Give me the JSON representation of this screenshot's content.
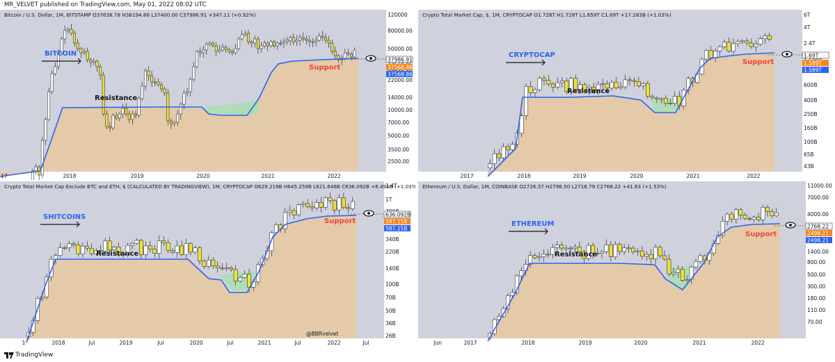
{
  "publish_line": "MR_VELVET published on TradingView.com, May 01, 2022 08:02 UTC",
  "footer_brand": "TradingView",
  "colors": {
    "accent_blue": "#2a62f4",
    "support_red": "#f0433a",
    "candle_up": "#ffffff",
    "candle_down": "#f0df36",
    "fill_tan": "#e6c9a2",
    "fill_green": "#a7dfae",
    "panel_bg": "#cfd2dc",
    "price_tag_orange": "#f5861f"
  },
  "chart_data": [
    {
      "id": "btc",
      "type": "candlestick",
      "title": "Bitcoin / U.S. Dollar, 1M, BITSTAMP  O37638.78  H38194.86  L37400.00  C37986.91  +347.11 (+0.92%)",
      "label": "BITCOIN",
      "resistance_label": "Resistance",
      "support_label": "Support",
      "y_unit": "USD",
      "log_scale": true,
      "y_ticks": [
        "120000",
        "80000.00",
        "50000.00",
        "37986.91",
        "37568.86",
        "37568.86",
        "22000.00",
        "14000.00",
        "10000.00",
        "7000.00",
        "5000.00",
        "3500.00",
        "2500.00"
      ],
      "price_tags": [
        {
          "text": "37986.91",
          "kind": "last"
        },
        {
          "text": "37568.86",
          "kind": "orange"
        },
        {
          "text": "37568.86",
          "kind": "blue"
        }
      ],
      "x_labels": [
        "17",
        "2018",
        "2019",
        "2020",
        "2021",
        "2022"
      ]
    },
    {
      "id": "total",
      "type": "candlestick",
      "title": "Crypto Total Market Cap, $, 1M, CRYPTOCAP  O1.728T  H1.728T  L1.659T  C1.69T  +17.283B (+1.03%)",
      "label": "CRYPTOCAP",
      "resistance_label": "Resistance",
      "support_label": "Support",
      "y_unit": "USD",
      "log_scale": true,
      "y_ticks": [
        "6T",
        "4T",
        "2.4T",
        "1.69T",
        "1.589T",
        "1.589T",
        "600B",
        "400B",
        "250B",
        "160B",
        "100B",
        "65B",
        "43B"
      ],
      "price_tags": [
        {
          "text": "1.69T",
          "kind": "last"
        },
        {
          "text": "1.589T",
          "kind": "orange"
        },
        {
          "text": "1.589T",
          "kind": "blue"
        }
      ],
      "x_labels": [
        "2017",
        "2018",
        "2019",
        "2020",
        "2021",
        "2022"
      ]
    },
    {
      "id": "alts",
      "type": "candlestick",
      "title": "Crypto Total Market Cap Exclude BTC and ETH, $ (CALCULATED BY TRADINGVIEW), 1M, CRYPTOCAP  O629.219B  H645.259B  L621.646B  C636.092B  +6.492B (+1.03%)",
      "label": "SHITCOINS",
      "resistance_label": "Resistance",
      "support_label": "Support",
      "y_unit": "USD",
      "log_scale": true,
      "y_ticks": [
        "1.4T",
        "1T",
        "700B",
        "636.092B",
        "587.15B",
        "587.15B",
        "340B",
        "220B",
        "140B",
        "100B",
        "70B",
        "50B",
        "36B",
        "26B"
      ],
      "price_tags": [
        {
          "text": "636.092B",
          "kind": "last"
        },
        {
          "text": "587.15B",
          "kind": "orange"
        },
        {
          "text": "587.15B",
          "kind": "blue"
        }
      ],
      "x_labels": [
        "1",
        "2018",
        "Jul",
        "2019",
        "Jul",
        "2020",
        "Jul",
        "2021",
        "Jul",
        "2022",
        "Jul"
      ],
      "watermark": "@BBRvelvet"
    },
    {
      "id": "eth",
      "type": "candlestick",
      "title": "Ethereum / U.S. Dollar, 1M, COINBASE  O2726.37  H2796.50  L2716.79  C2768.22  +41.63 (+1.53%)",
      "label": "ETHEREUM",
      "resistance_label": "Resistance",
      "support_label": "Support",
      "y_unit": "USD",
      "log_scale": true,
      "y_ticks": [
        "11000.00",
        "7000.00",
        "4000.00",
        "2768.22",
        "2498.21",
        "2498.21",
        "1400.00",
        "800.00",
        "500.00",
        "300.00",
        "180.00",
        "110.00",
        "70.00"
      ],
      "price_tags": [
        {
          "text": "2768.22",
          "kind": "last"
        },
        {
          "text": "2498.21",
          "kind": "orange"
        },
        {
          "text": "2498.21",
          "kind": "blue"
        }
      ],
      "x_labels": [
        "Jun",
        "2017",
        "2018",
        "2019",
        "2020",
        "2021",
        "2022"
      ]
    }
  ]
}
